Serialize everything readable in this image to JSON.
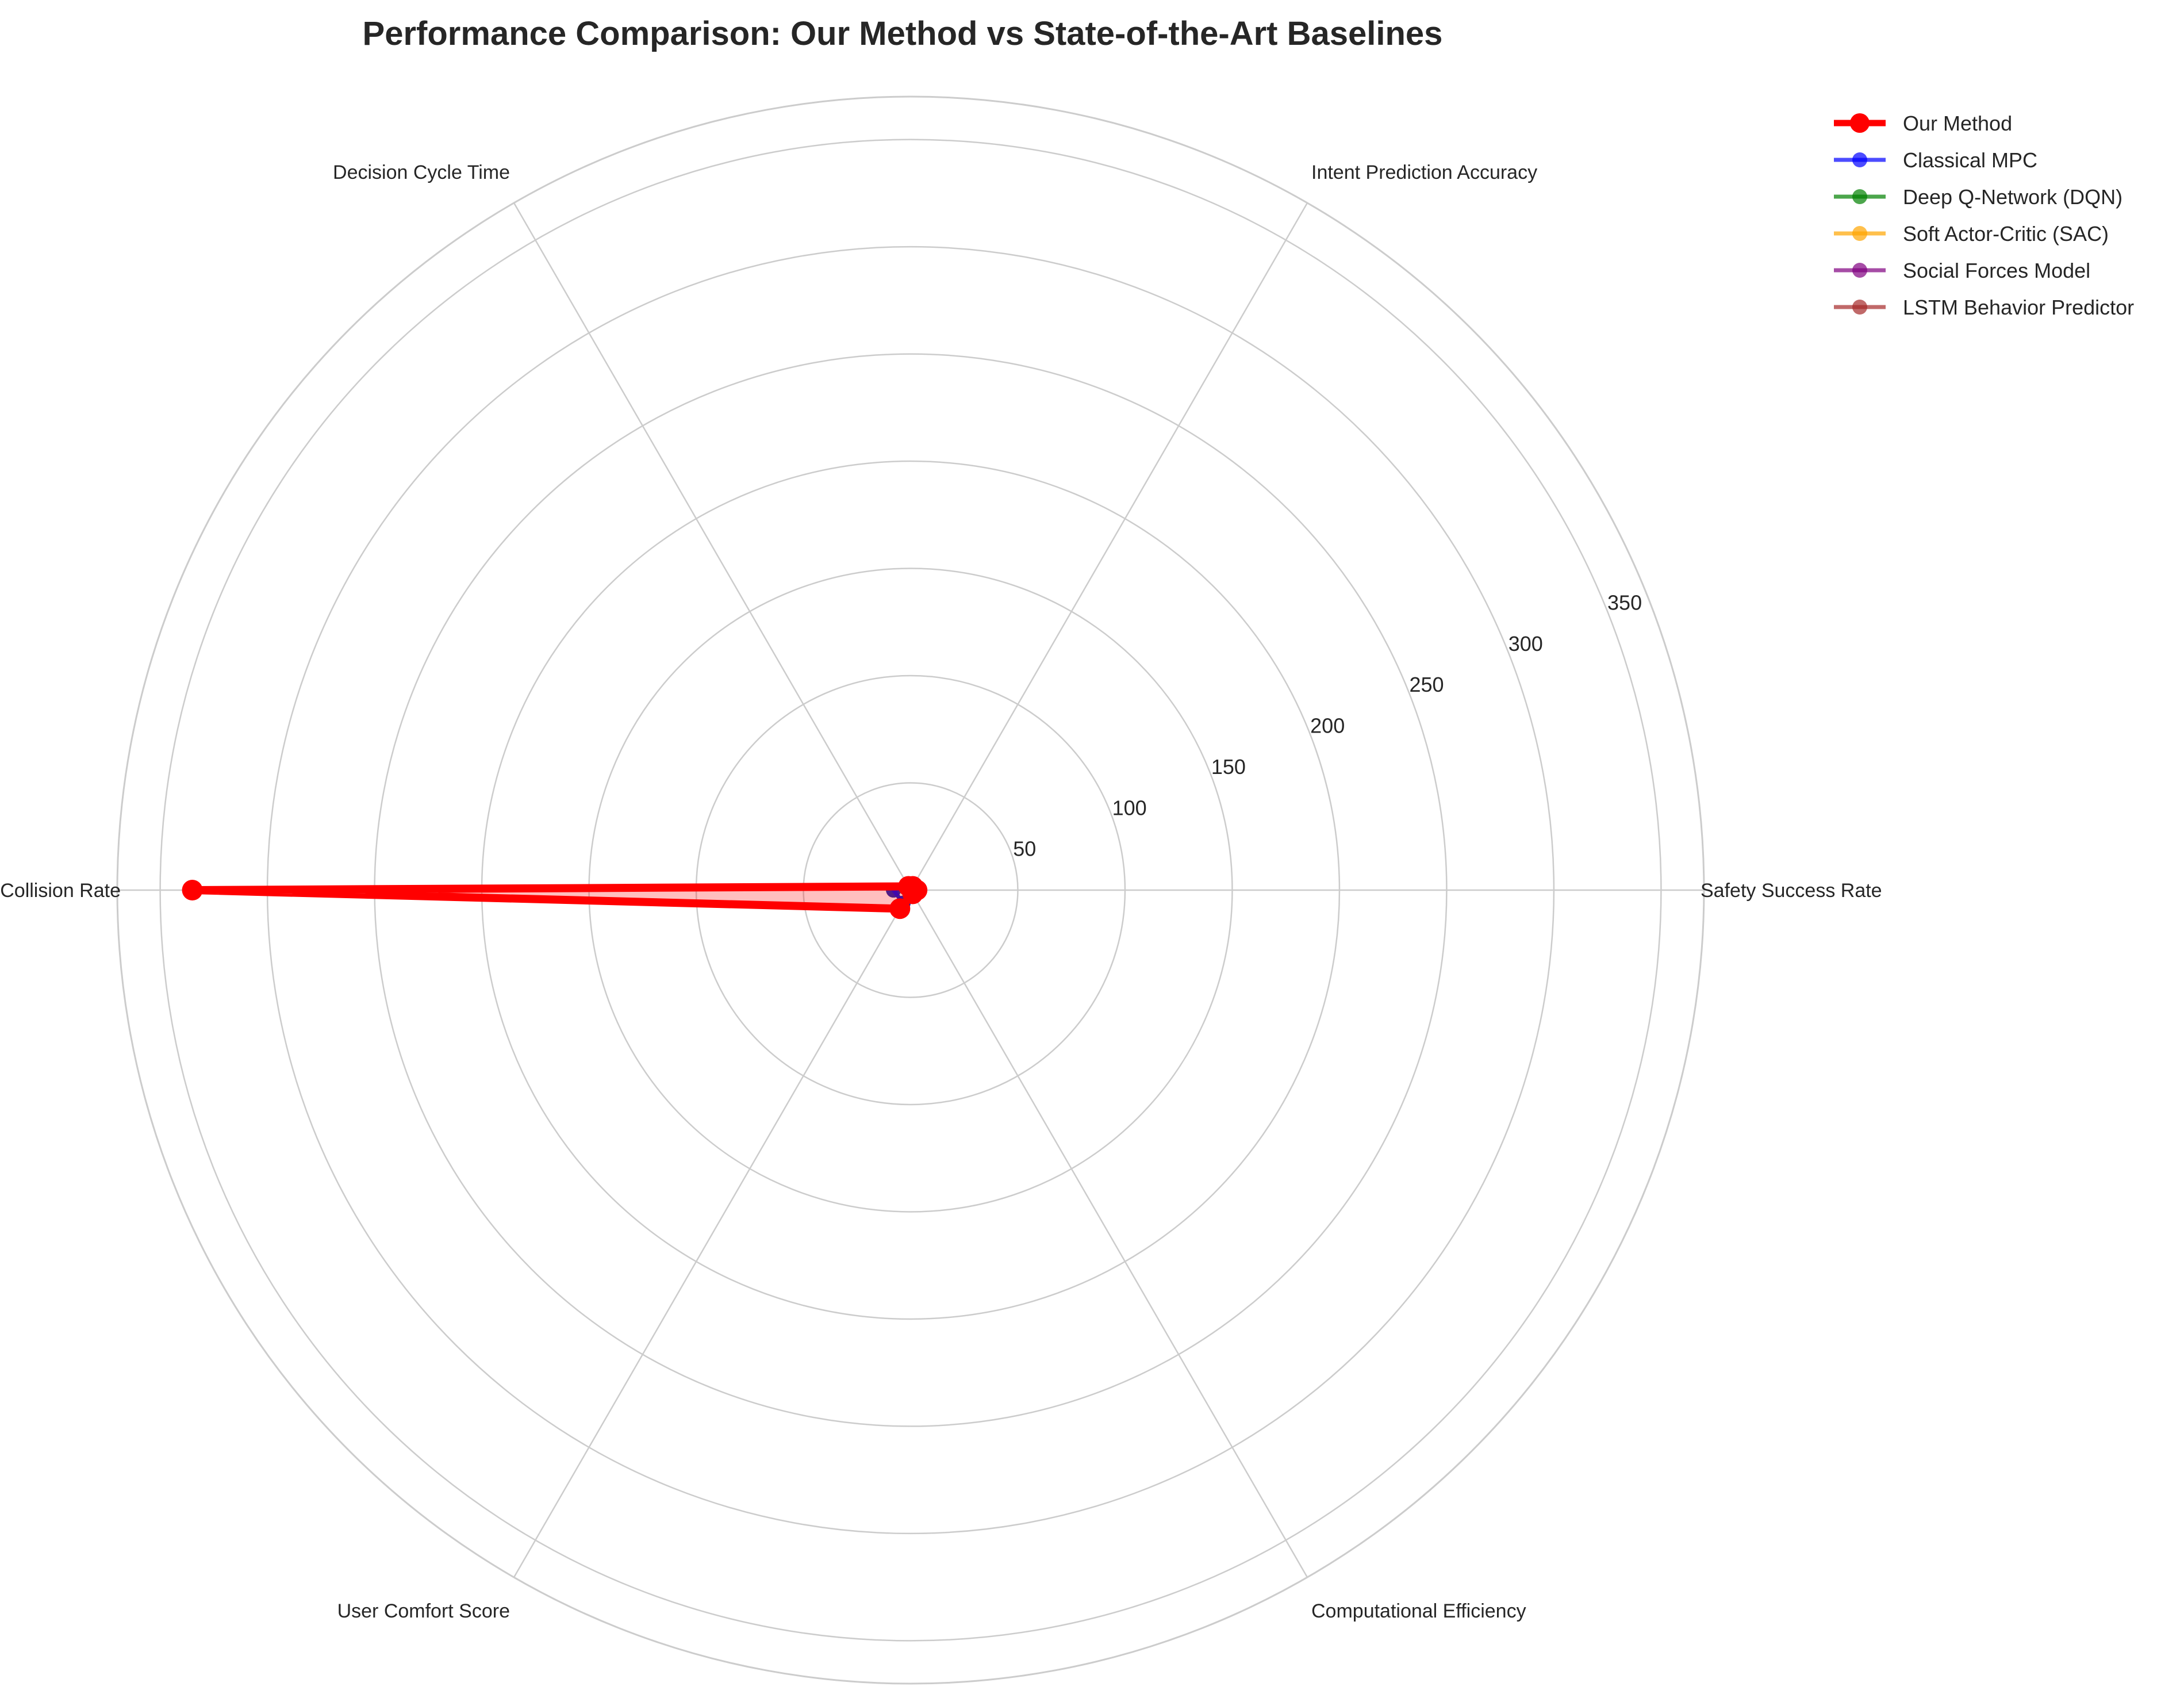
{
  "chart_data": {
    "type": "radar",
    "title": "Performance Comparison: Our Method vs State-of-the-Art Baselines",
    "categories": [
      "Safety Success Rate",
      "Intent Prediction Accuracy",
      "Decision Cycle Time",
      "Collision Rate",
      "User Comfort Score",
      "Computational Efficiency"
    ],
    "rticks": [
      50,
      100,
      150,
      200,
      250,
      300,
      350
    ],
    "rlim": [
      0,
      370
    ],
    "grid": true,
    "legend_position": "top-right",
    "series": [
      {
        "name": "Our Method",
        "color": "#ff0000",
        "values": [
          3,
          2,
          2,
          335,
          10,
          2
        ],
        "fill": true
      },
      {
        "name": "Classical MPC",
        "color": "#0000ff",
        "values": [
          2,
          2,
          2,
          8,
          7,
          2
        ]
      },
      {
        "name": "Deep Q-Network (DQN)",
        "color": "#008000",
        "values": [
          2,
          2,
          2,
          8,
          7,
          2
        ]
      },
      {
        "name": "Soft Actor-Critic (SAC)",
        "color": "#ffa500",
        "values": [
          2,
          2,
          2,
          8,
          7,
          2
        ]
      },
      {
        "name": "Social Forces Model",
        "color": "#800080",
        "values": [
          2,
          2,
          2,
          8,
          7,
          2
        ]
      },
      {
        "name": "LSTM Behavior Predictor",
        "color": "#a52a2a",
        "values": [
          2,
          2,
          2,
          8,
          7,
          2
        ]
      }
    ]
  }
}
